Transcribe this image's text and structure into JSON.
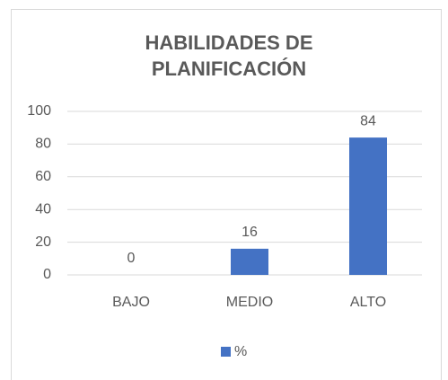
{
  "chart_data": {
    "type": "bar",
    "title": "HABILIDADES DE PLANIFICACIÓN",
    "categories": [
      "BAJO",
      "MEDIO",
      "ALTO"
    ],
    "series": [
      {
        "name": "%",
        "color": "#4472c4",
        "values": [
          0,
          16,
          84
        ]
      }
    ],
    "ylim": [
      0,
      100
    ],
    "yticks": [
      0,
      20,
      40,
      60,
      80,
      100
    ],
    "grid": true,
    "legend": "bottom",
    "data_labels": true
  }
}
